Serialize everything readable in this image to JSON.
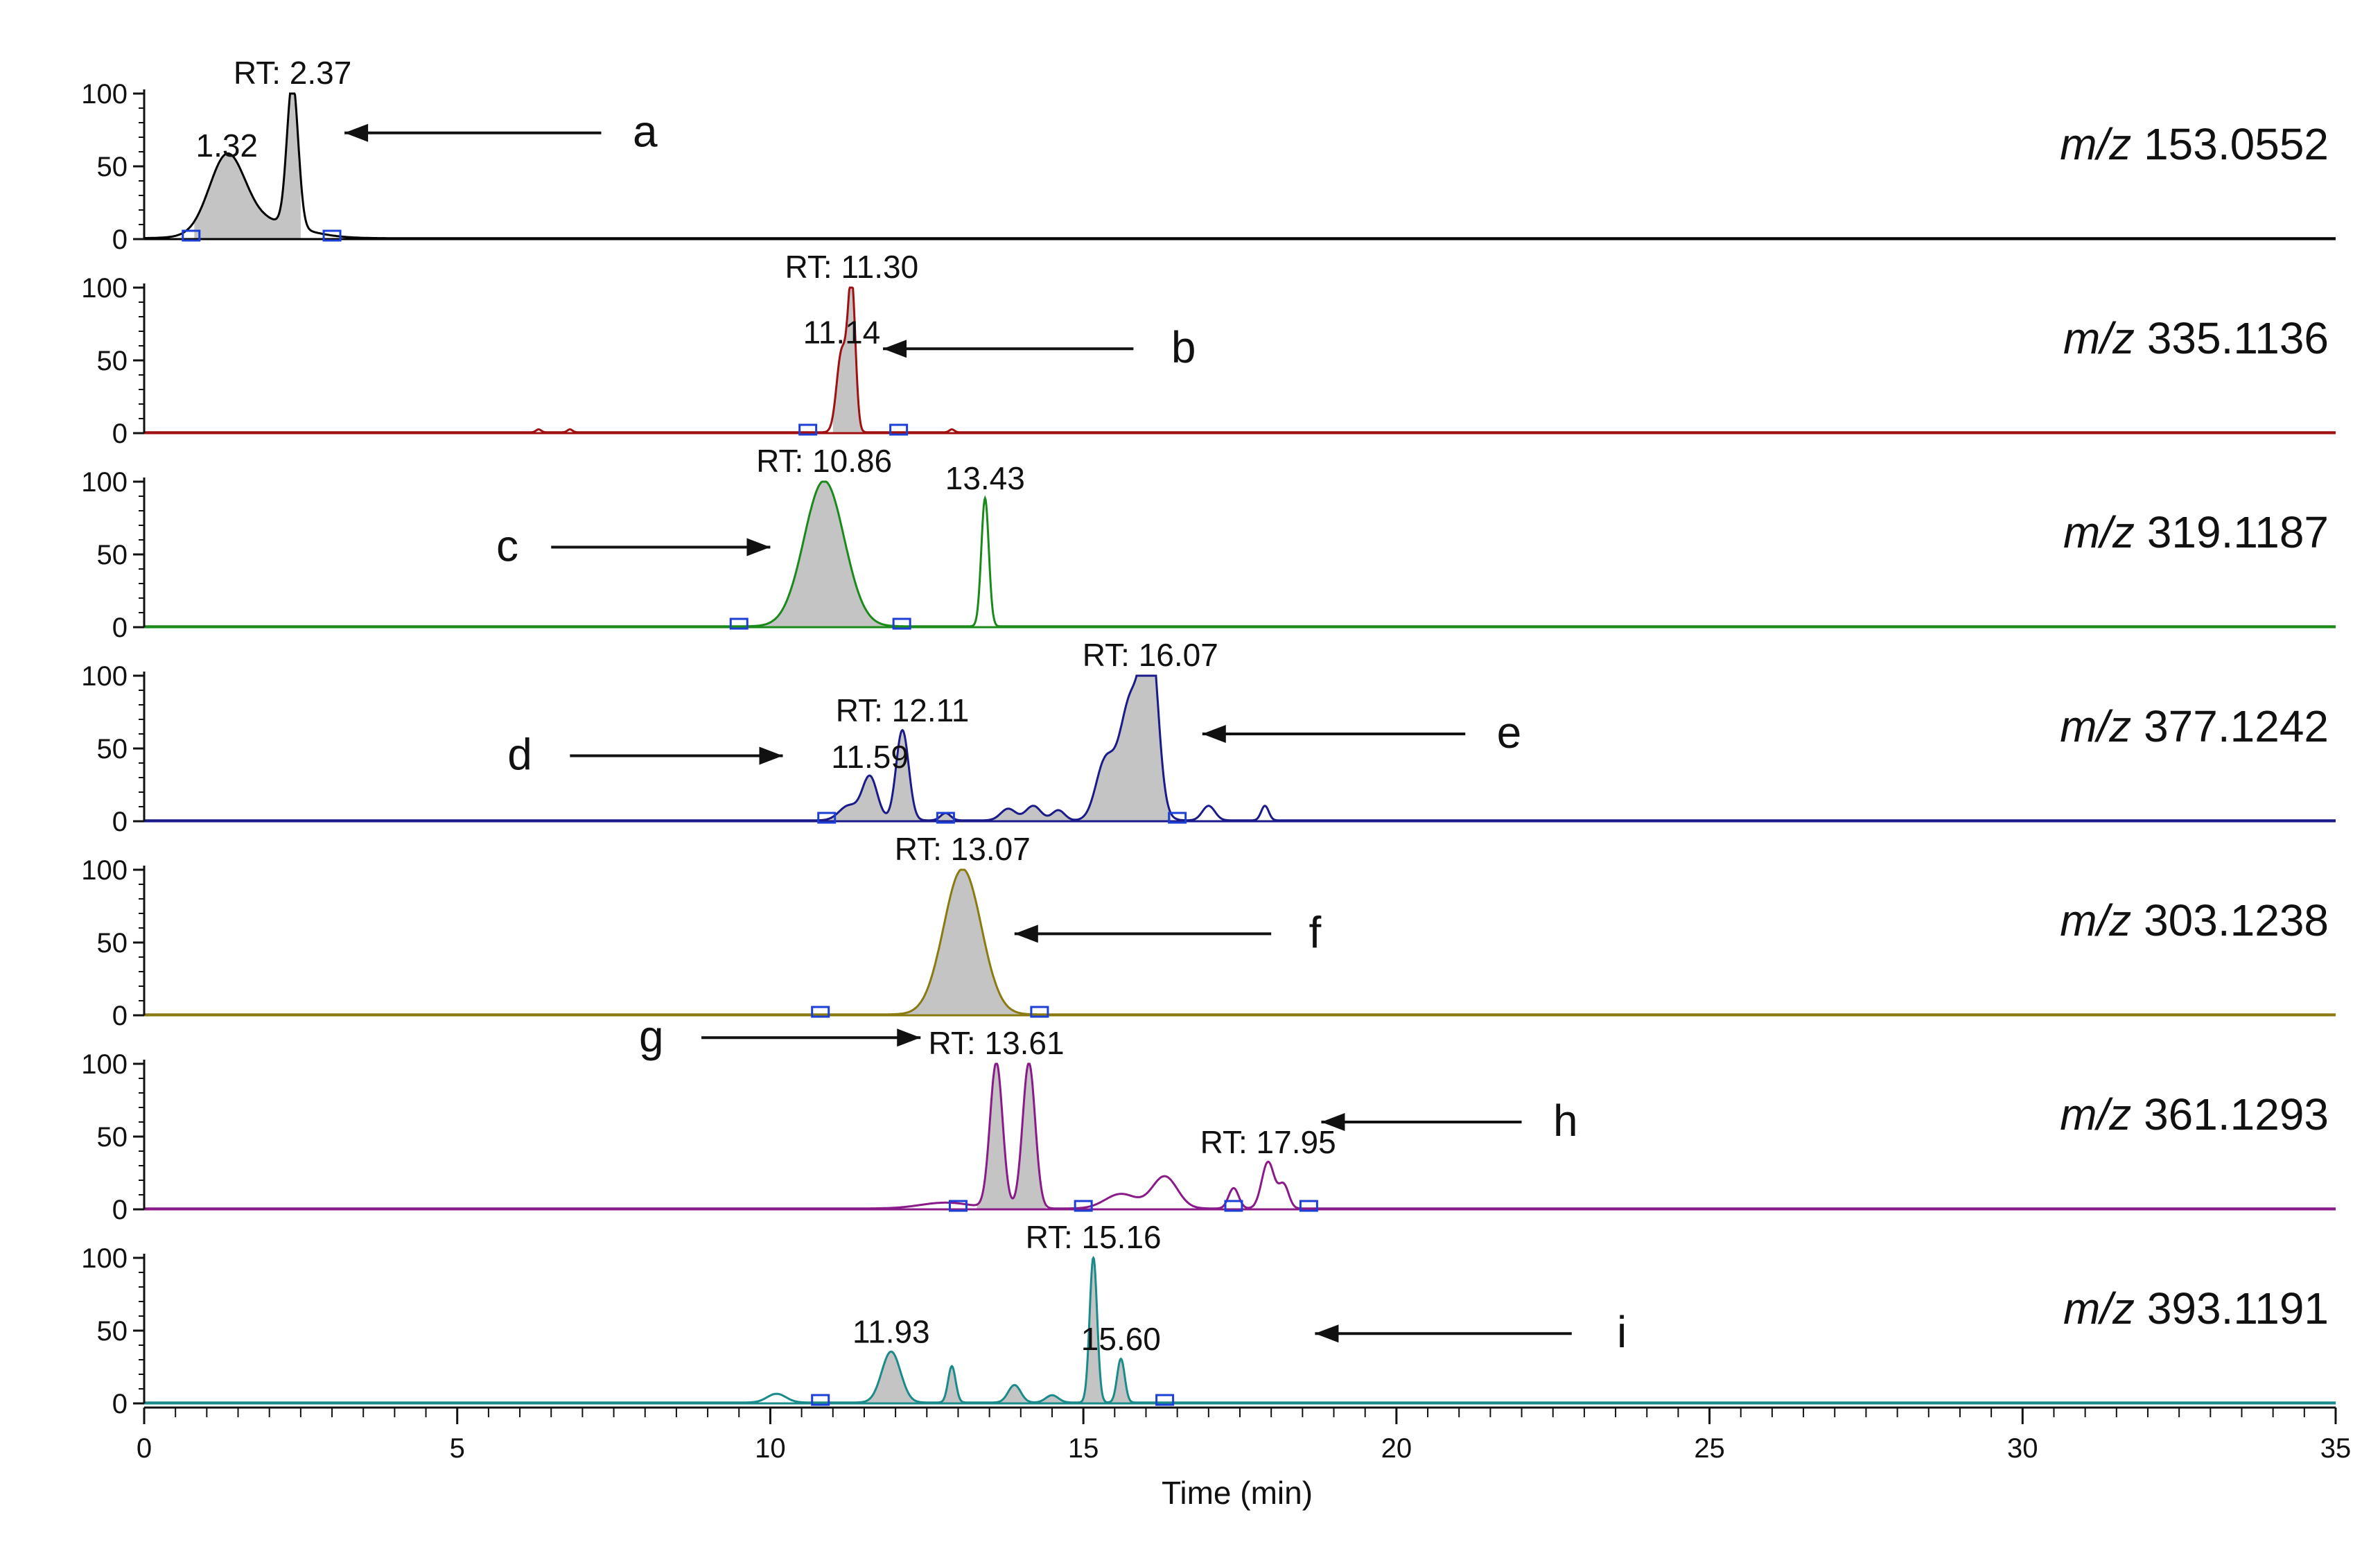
{
  "chart_data": {
    "type": "line",
    "xlabel": "Time (min)",
    "xlim": [
      0,
      35
    ],
    "x_ticks": [
      "0",
      "5",
      "10",
      "15",
      "20",
      "25",
      "30",
      "35"
    ],
    "ylim": [
      0,
      100
    ],
    "y_ticks": [
      "0",
      "50",
      "100"
    ],
    "panels": [
      {
        "mz_prefix": "m/z",
        "mz_value": "153.0552",
        "color": "#000000",
        "peaks": [
          {
            "x": 1.32,
            "y": 50,
            "w": 0.28
          },
          {
            "x": 2.37,
            "y": 100,
            "w": 0.09
          },
          {
            "x": 1.85,
            "y": 12,
            "w": 0.6
          }
        ],
        "shade": [
          0.8,
          2.5
        ],
        "markers": [
          0.75,
          3.0
        ],
        "labels": [
          {
            "x": 1.32,
            "y": 50,
            "text": "1.32"
          },
          {
            "x": 2.37,
            "y": 100,
            "text": "RT: 2.37"
          }
        ],
        "arrow": {
          "letter": "a",
          "dir": "left",
          "from": 7.3,
          "to": 3.2,
          "y": 73,
          "letter_x": 8.0
        }
      },
      {
        "mz_prefix": "m/z",
        "mz_value": "335.1136",
        "color": "#a01010",
        "peaks": [
          {
            "x": 11.14,
            "y": 55,
            "w": 0.08
          },
          {
            "x": 11.3,
            "y": 100,
            "w": 0.06
          },
          {
            "x": 6.3,
            "y": 2,
            "w": 0.04
          },
          {
            "x": 6.8,
            "y": 2,
            "w": 0.04
          },
          {
            "x": 12.9,
            "y": 2,
            "w": 0.04
          }
        ],
        "shade": [
          11.0,
          11.5
        ],
        "markers": [
          10.6,
          12.05
        ],
        "labels": [
          {
            "x": 11.14,
            "y": 55,
            "text": "11.14"
          },
          {
            "x": 11.3,
            "y": 100,
            "text": "RT: 11.30"
          }
        ],
        "arrow": {
          "letter": "b",
          "dir": "left",
          "from": 15.8,
          "to": 11.8,
          "y": 58,
          "letter_x": 16.6
        }
      },
      {
        "mz_prefix": "m/z",
        "mz_value": "319.1187",
        "color": "#1a8a1a",
        "peaks": [
          {
            "x": 10.86,
            "y": 100,
            "w": 0.32
          },
          {
            "x": 13.43,
            "y": 88,
            "w": 0.06
          }
        ],
        "shade": [
          9.6,
          12.1
        ],
        "markers": [
          9.5,
          12.1
        ],
        "labels": [
          {
            "x": 10.86,
            "y": 100,
            "text": "RT: 10.86"
          },
          {
            "x": 13.43,
            "y": 88,
            "text": "13.43"
          }
        ],
        "arrow": {
          "letter": "c",
          "dir": "right",
          "from": 6.5,
          "to": 10.0,
          "y": 55,
          "letter_x": 5.8
        }
      },
      {
        "mz_prefix": "m/z",
        "mz_value": "377.1242",
        "color": "#1a1a8a",
        "peaks": [
          {
            "x": 11.59,
            "y": 30,
            "w": 0.12
          },
          {
            "x": 12.11,
            "y": 62,
            "w": 0.1
          },
          {
            "x": 11.25,
            "y": 10,
            "w": 0.15
          },
          {
            "x": 15.35,
            "y": 40,
            "w": 0.15
          },
          {
            "x": 15.7,
            "y": 45,
            "w": 0.15
          },
          {
            "x": 16.07,
            "y": 100,
            "w": 0.12
          },
          {
            "x": 15.9,
            "y": 55,
            "w": 0.2
          },
          {
            "x": 13.8,
            "y": 8,
            "w": 0.12
          },
          {
            "x": 14.2,
            "y": 10,
            "w": 0.12
          },
          {
            "x": 14.6,
            "y": 7,
            "w": 0.1
          },
          {
            "x": 17.0,
            "y": 10,
            "w": 0.1
          },
          {
            "x": 17.9,
            "y": 10,
            "w": 0.06
          },
          {
            "x": 12.8,
            "y": 5,
            "w": 0.08
          }
        ],
        "shade": [
          10.9,
          16.4
        ],
        "markers": [
          10.9,
          12.8,
          16.5
        ],
        "labels": [
          {
            "x": 11.59,
            "y": 30,
            "text": "11.59"
          },
          {
            "x": 12.11,
            "y": 62,
            "text": "RT: 12.11"
          },
          {
            "x": 16.07,
            "y": 100,
            "text": "RT: 16.07"
          }
        ],
        "arrow": {
          "letter": "e",
          "dir": "left",
          "from": 21.1,
          "to": 16.9,
          "y": 60,
          "letter_x": 21.8
        },
        "arrow2": {
          "letter": "d",
          "dir": "right",
          "from": 6.8,
          "to": 10.2,
          "y": 45,
          "letter_x": 6.0
        }
      },
      {
        "mz_prefix": "m/z",
        "mz_value": "303.1238",
        "color": "#8a7a10",
        "peaks": [
          {
            "x": 13.07,
            "y": 100,
            "w": 0.3
          }
        ],
        "shade": [
          11.8,
          14.3
        ],
        "markers": [
          10.8,
          14.3
        ],
        "labels": [
          {
            "x": 13.07,
            "y": 100,
            "text": "RT: 13.07"
          }
        ],
        "arrow": {
          "letter": "f",
          "dir": "left",
          "from": 18.0,
          "to": 13.9,
          "y": 56,
          "letter_x": 18.7
        }
      },
      {
        "mz_prefix": "m/z",
        "mz_value": "361.1293",
        "color": "#8a1a8a",
        "peaks": [
          {
            "x": 13.61,
            "y": 100,
            "w": 0.1
          },
          {
            "x": 14.13,
            "y": 100,
            "w": 0.1
          },
          {
            "x": 16.3,
            "y": 22,
            "w": 0.2
          },
          {
            "x": 15.6,
            "y": 10,
            "w": 0.25
          },
          {
            "x": 17.95,
            "y": 32,
            "w": 0.1
          },
          {
            "x": 17.4,
            "y": 14,
            "w": 0.08
          },
          {
            "x": 18.2,
            "y": 16,
            "w": 0.08
          },
          {
            "x": 12.8,
            "y": 4,
            "w": 0.4
          }
        ],
        "shade": [
          13.3,
          14.4
        ],
        "markers": [
          13.0,
          15.0,
          17.4,
          18.6
        ],
        "labels": [
          {
            "x": 13.61,
            "y": 100,
            "text": "RT: 13.61"
          },
          {
            "x": 17.95,
            "y": 32,
            "text": "RT: 17.95"
          }
        ],
        "arrow": {
          "letter": "h",
          "dir": "left",
          "from": 22.0,
          "to": 18.8,
          "y": 60,
          "letter_x": 22.7
        },
        "arrow2": {
          "letter": "g",
          "dir": "right",
          "from": 8.9,
          "to": 12.4,
          "y": 118,
          "letter_x": 8.1
        }
      },
      {
        "mz_prefix": "m/z",
        "mz_value": "393.1191",
        "color": "#1a8a8a",
        "peaks": [
          {
            "x": 11.93,
            "y": 35,
            "w": 0.15
          },
          {
            "x": 12.9,
            "y": 25,
            "w": 0.06
          },
          {
            "x": 13.9,
            "y": 12,
            "w": 0.1
          },
          {
            "x": 15.16,
            "y": 100,
            "w": 0.06
          },
          {
            "x": 15.6,
            "y": 30,
            "w": 0.06
          },
          {
            "x": 10.1,
            "y": 6,
            "w": 0.15
          },
          {
            "x": 14.5,
            "y": 5,
            "w": 0.1
          }
        ],
        "shade": [
          10.8,
          16.0
        ],
        "markers": [
          10.8,
          16.3
        ],
        "labels": [
          {
            "x": 11.93,
            "y": 35,
            "text": "11.93"
          },
          {
            "x": 15.16,
            "y": 100,
            "text": "RT: 15.16"
          },
          {
            "x": 15.6,
            "y": 30,
            "text": "15.60"
          }
        ],
        "arrow": {
          "letter": "i",
          "dir": "left",
          "from": 22.8,
          "to": 18.7,
          "y": 48,
          "letter_x": 23.6
        }
      }
    ]
  }
}
